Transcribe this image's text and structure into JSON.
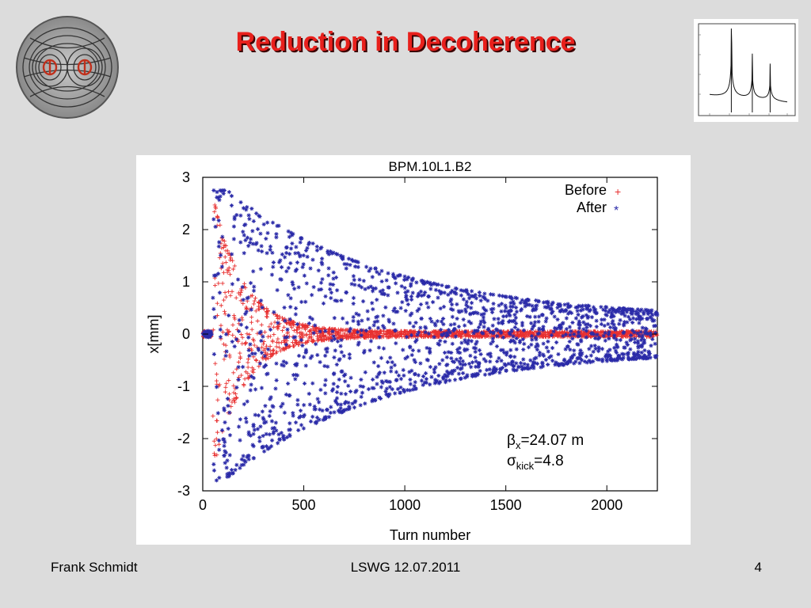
{
  "slide": {
    "title": "Reduction in Decoherence",
    "footer": {
      "author": "Frank Schmidt",
      "center": "LSWG 12.07.2011",
      "page": "4"
    }
  },
  "chart_data": {
    "type": "scatter",
    "title": "BPM.10L1.B2",
    "xlabel": "Turn number",
    "ylabel": "x[mm]",
    "xlim": [
      0,
      2250
    ],
    "ylim": [
      -3,
      3
    ],
    "xticks": [
      "0",
      "500",
      "1000",
      "1500",
      "2000"
    ],
    "yticks": [
      "-3",
      "-2",
      "-1",
      "0",
      "1",
      "2",
      "3"
    ],
    "grid": false,
    "legend_position": "top-right",
    "series": [
      {
        "name": "Before",
        "marker": "+",
        "color": "#e83030",
        "envelope_amplitude_mm": 2.6,
        "damping_turns": 150,
        "start_turn": 50,
        "end_turn": 2250,
        "residual_mm": 0.05
      },
      {
        "name": "After",
        "marker": "*",
        "color": "#2a2aa8",
        "envelope_amplitude_mm": 2.7,
        "damping_turns": 800,
        "start_turn": 50,
        "end_turn": 2250,
        "residual_mm": 0.28
      }
    ],
    "annotations": [
      {
        "prefix": "β",
        "sub": "x",
        "suffix": "=24.07 m"
      },
      {
        "prefix": "σ",
        "sub": "kick",
        "suffix": "=4.8"
      }
    ]
  },
  "thumbnail": {
    "description": "spectrum inset",
    "peaks": [
      {
        "x": 0.28,
        "height": 0.95
      },
      {
        "x": 0.55,
        "height": 0.55
      },
      {
        "x": 0.78,
        "height": 0.45
      }
    ]
  }
}
